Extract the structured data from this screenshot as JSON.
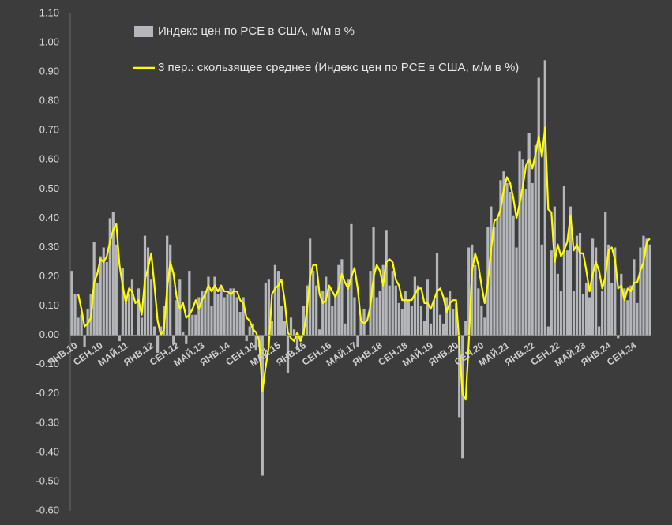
{
  "chart_data": {
    "type": "bar",
    "categories": [
      "ЯНВ.10",
      null,
      null,
      null,
      null,
      null,
      null,
      null,
      "СЕН.10",
      null,
      null,
      null,
      null,
      null,
      null,
      null,
      "МАЙ.11",
      null,
      null,
      null,
      null,
      null,
      null,
      null,
      "ЯНВ.12",
      null,
      null,
      null,
      null,
      null,
      null,
      null,
      "СЕН.12",
      null,
      null,
      null,
      null,
      null,
      null,
      null,
      "МАЙ.13",
      null,
      null,
      null,
      null,
      null,
      null,
      null,
      "ЯНВ.14",
      null,
      null,
      null,
      null,
      null,
      null,
      null,
      "СЕН.14",
      null,
      null,
      null,
      null,
      null,
      null,
      null,
      "МАЙ.15",
      null,
      null,
      null,
      null,
      null,
      null,
      null,
      "ЯНВ.16",
      null,
      null,
      null,
      null,
      null,
      null,
      null,
      "СЕН.16",
      null,
      null,
      null,
      null,
      null,
      null,
      null,
      "МАЙ.17",
      null,
      null,
      null,
      null,
      null,
      null,
      null,
      "ЯНВ.18",
      null,
      null,
      null,
      null,
      null,
      null,
      null,
      "СЕН.18",
      null,
      null,
      null,
      null,
      null,
      null,
      null,
      "МАЙ.19",
      null,
      null,
      null,
      null,
      null,
      null,
      null,
      "ЯНВ.20",
      null,
      null,
      null,
      null,
      null,
      null,
      null,
      "СЕН.20",
      null,
      null,
      null,
      null,
      null,
      null,
      null,
      "МАЙ.21",
      null,
      null,
      null,
      null,
      null,
      null,
      null,
      "ЯНВ.22",
      null,
      null,
      null,
      null,
      null,
      null,
      null,
      "СЕН.22",
      null,
      null,
      null,
      null,
      null,
      null,
      null,
      "МАЙ.23",
      null,
      null,
      null,
      null,
      null,
      null,
      null,
      "ЯНВ.24",
      null,
      null,
      null,
      null,
      null,
      null,
      null,
      "СЕН.24",
      null,
      null,
      null,
      null,
      null,
      null
    ],
    "series": [
      {
        "name": "Индекс цен по PCE в США, м/м в %",
        "color": "#b4b6ba",
        "type": "bar",
        "values": [
          0.22,
          0.14,
          0.06,
          0.07,
          -0.04,
          0.09,
          0.14,
          0.32,
          0.18,
          0.27,
          0.3,
          0.25,
          0.4,
          0.42,
          0.31,
          -0.02,
          0.23,
          0.11,
          0.14,
          0.19,
          0.0,
          0.16,
          0.06,
          0.34,
          0.3,
          0.19,
          0.03,
          -0.06,
          0.03,
          0.1,
          0.34,
          0.31,
          -0.03,
          0.12,
          0.19,
          0.01,
          -0.03,
          0.22,
          0.07,
          0.07,
          0.13,
          0.15,
          0.15,
          0.2,
          0.1,
          0.2,
          0.14,
          0.17,
          0.13,
          0.14,
          0.16,
          0.16,
          0.13,
          0.08,
          0.13,
          -0.02,
          0.03,
          0.04,
          -0.05,
          -0.04,
          -0.48,
          0.18,
          0.19,
          0.05,
          0.24,
          0.22,
          0.1,
          0.05,
          -0.13,
          0.06,
          0.02,
          -0.05,
          -0.02,
          0.1,
          0.17,
          0.33,
          0.22,
          0.17,
          0.02,
          0.15,
          0.2,
          0.16,
          0.1,
          0.14,
          0.24,
          0.26,
          0.04,
          0.19,
          0.38,
          0.13,
          -0.04,
          0.06,
          0.09,
          0.0,
          0.22,
          0.37,
          0.13,
          0.15,
          0.24,
          0.36,
          0.17,
          0.22,
          0.17,
          0.11,
          0.09,
          0.15,
          0.12,
          0.1,
          0.2,
          0.17,
          0.1,
          0.05,
          0.19,
          0.04,
          0.12,
          0.28,
          0.07,
          0.04,
          0.13,
          0.15,
          0.09,
          0.11,
          -0.28,
          -0.42,
          0.05,
          0.3,
          0.31,
          0.24,
          0.16,
          0.1,
          0.06,
          0.37,
          0.44,
          0.37,
          0.4,
          0.53,
          0.56,
          0.52,
          0.49,
          0.41,
          0.3,
          0.63,
          0.6,
          0.5,
          0.69,
          0.52,
          0.65,
          0.88,
          0.31,
          0.94,
          0.03,
          0.29,
          0.44,
          0.21,
          0.15,
          0.51,
          0.29,
          0.44,
          0.15,
          0.34,
          0.35,
          0.14,
          0.18,
          0.13,
          0.33,
          0.3,
          0.03,
          0.15,
          0.42,
          0.31,
          0.18,
          0.3,
          -0.01,
          0.21,
          0.16,
          0.12,
          0.17,
          0.26,
          0.11,
          0.3,
          0.34,
          0.33,
          0.31
        ]
      },
      {
        "name": "3 пер.: скользящее среднее (Индекс цен по PCE в США, м/м в %)",
        "color": "#ffff00",
        "type": "line",
        "values": [
          null,
          null,
          0.14,
          0.09,
          0.03,
          0.04,
          0.06,
          0.18,
          0.21,
          0.26,
          0.25,
          0.27,
          0.32,
          0.36,
          0.38,
          0.24,
          0.17,
          0.11,
          0.16,
          0.15,
          0.11,
          0.12,
          0.07,
          0.19,
          0.23,
          0.28,
          0.17,
          0.05,
          0.0,
          0.02,
          0.16,
          0.25,
          0.21,
          0.13,
          0.09,
          0.11,
          0.06,
          0.07,
          0.09,
          0.12,
          0.09,
          0.12,
          0.14,
          0.17,
          0.15,
          0.17,
          0.15,
          0.17,
          0.15,
          0.15,
          0.14,
          0.15,
          0.15,
          0.12,
          0.11,
          0.06,
          0.05,
          0.02,
          0.01,
          -0.02,
          -0.19,
          -0.11,
          -0.04,
          0.14,
          0.16,
          0.17,
          0.19,
          0.12,
          0.01,
          -0.01,
          -0.02,
          0.01,
          -0.02,
          0.01,
          0.08,
          0.2,
          0.24,
          0.24,
          0.14,
          0.11,
          0.12,
          0.17,
          0.15,
          0.13,
          0.16,
          0.21,
          0.18,
          0.16,
          0.2,
          0.23,
          0.16,
          0.05,
          0.04,
          0.05,
          0.1,
          0.2,
          0.24,
          0.22,
          0.17,
          0.25,
          0.26,
          0.25,
          0.19,
          0.17,
          0.12,
          0.12,
          0.12,
          0.12,
          0.14,
          0.16,
          0.16,
          0.11,
          0.11,
          0.09,
          0.12,
          0.15,
          0.16,
          0.13,
          0.08,
          0.11,
          0.12,
          0.12,
          -0.03,
          -0.2,
          -0.22,
          -0.02,
          0.22,
          0.28,
          0.24,
          0.17,
          0.11,
          0.18,
          0.29,
          0.39,
          0.4,
          0.43,
          0.5,
          0.54,
          0.52,
          0.47,
          0.4,
          0.45,
          0.51,
          0.58,
          0.6,
          0.57,
          0.62,
          0.68,
          0.61,
          0.71,
          0.43,
          0.42,
          0.25,
          0.31,
          0.27,
          0.29,
          0.32,
          0.41,
          0.29,
          0.31,
          0.28,
          0.28,
          0.22,
          0.15,
          0.21,
          0.25,
          0.22,
          0.16,
          0.2,
          0.29,
          0.3,
          0.26,
          0.16,
          0.17,
          0.12,
          0.16,
          0.15,
          0.18,
          0.18,
          0.22,
          0.25,
          0.32,
          0.33
        ]
      }
    ],
    "ylim": [
      -0.6,
      1.1
    ],
    "yticks": [
      {
        "value": -0.6,
        "label": "-0.60"
      },
      {
        "value": -0.5,
        "label": "-0.50"
      },
      {
        "value": -0.4,
        "label": "-0.40"
      },
      {
        "value": -0.3,
        "label": "-0.30"
      },
      {
        "value": -0.2,
        "label": "-0.20"
      },
      {
        "value": -0.1,
        "label": "-0.10"
      },
      {
        "value": 0,
        "label": "0.00"
      },
      {
        "value": 0.1,
        "label": "0.10"
      },
      {
        "value": 0.2,
        "label": "0.20"
      },
      {
        "value": 0.3,
        "label": "0.30"
      },
      {
        "value": 0.4,
        "label": "0.40"
      },
      {
        "value": 0.5,
        "label": "0.50"
      },
      {
        "value": 0.6,
        "label": "0.60"
      },
      {
        "value": 0.7,
        "label": "0.70"
      },
      {
        "value": 0.8,
        "label": "0.80"
      },
      {
        "value": 0.9,
        "label": "0.90"
      },
      {
        "value": 1.0,
        "label": "1.00"
      },
      {
        "value": 1.1,
        "label": "1.10"
      }
    ],
    "grid": false
  }
}
